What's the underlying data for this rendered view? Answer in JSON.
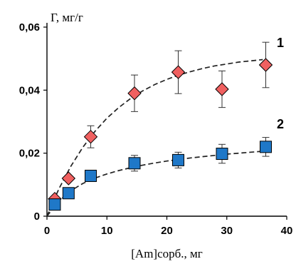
{
  "chart_data": {
    "type": "scatter",
    "ylabel": "Г, мг/г",
    "xlabel": "[Am]сорб., мг",
    "xlim": [
      0,
      40
    ],
    "ylim": [
      0,
      0.06
    ],
    "x_ticks": [
      0,
      10,
      20,
      30,
      40
    ],
    "x_tick_labels": [
      "0",
      "10",
      "20",
      "30",
      "40"
    ],
    "y_ticks": [
      0,
      0.02,
      0.04,
      0.06
    ],
    "y_tick_labels": [
      "0",
      "0,02",
      "0,04",
      "0,06"
    ],
    "grid": false,
    "legend": "none",
    "series": [
      {
        "name": "1",
        "marker": "diamond",
        "color": "#f06060",
        "fit": "dashed",
        "x": [
          1.3,
          3.6,
          7.3,
          14.6,
          21.9,
          29.2,
          36.5
        ],
        "y": [
          0.0055,
          0.012,
          0.0252,
          0.039,
          0.0457,
          0.0403,
          0.048
        ],
        "err": [
          0,
          0,
          0.0035,
          0.0058,
          0.0068,
          0.0058,
          0.0072
        ],
        "fit_curve": {
          "x": [
            0,
            2,
            4,
            6,
            8,
            10,
            12,
            14,
            16,
            18,
            20,
            22,
            24,
            26,
            28,
            30,
            32,
            34,
            36
          ],
          "y": [
            0,
            0.0087,
            0.0159,
            0.0219,
            0.0269,
            0.0311,
            0.0345,
            0.0374,
            0.0398,
            0.0418,
            0.0434,
            0.0448,
            0.0459,
            0.0469,
            0.0477,
            0.0483,
            0.0489,
            0.0493,
            0.0497
          ]
        }
      },
      {
        "name": "2",
        "marker": "square",
        "color": "#1f78c8",
        "fit": "dashed",
        "x": [
          1.3,
          3.6,
          7.3,
          14.6,
          21.9,
          29.2,
          36.5
        ],
        "y": [
          0.0037,
          0.0073,
          0.0128,
          0.0168,
          0.0178,
          0.0198,
          0.022
        ],
        "err": [
          0,
          0,
          0,
          0.0025,
          0.0025,
          0.003,
          0.003
        ],
        "fit_curve": {
          "x": [
            0,
            2,
            4,
            6,
            8,
            10,
            12,
            14,
            16,
            18,
            20,
            22,
            24,
            26,
            28,
            30,
            32,
            34,
            36
          ],
          "y": [
            0,
            0.0048,
            0.0081,
            0.0104,
            0.0121,
            0.0134,
            0.0145,
            0.0154,
            0.0162,
            0.0169,
            0.0175,
            0.018,
            0.0185,
            0.0189,
            0.0193,
            0.0197,
            0.02,
            0.0203,
            0.0206
          ]
        }
      }
    ]
  }
}
